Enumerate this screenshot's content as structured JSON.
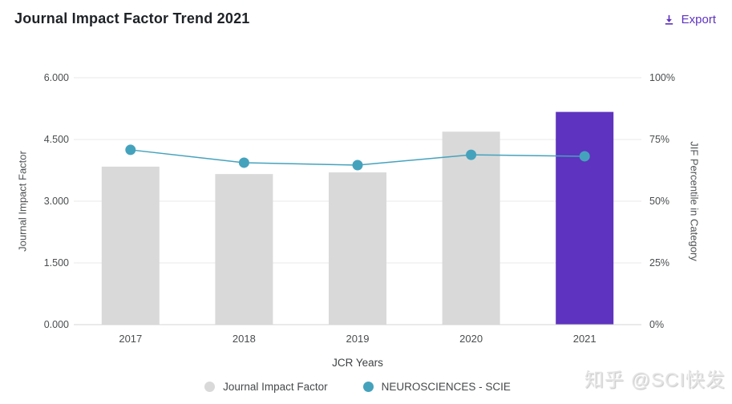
{
  "header": {
    "title": "Journal Impact Factor Trend 2021",
    "export_label": "Export"
  },
  "watermark": "知乎 @SCI快发",
  "colors": {
    "accent_purple": "#5e33bf",
    "bar_gray": "#d9d9d9",
    "line_teal": "#45a2bd",
    "grid": "#e9e9e9",
    "axis_line": "#d5d5d5"
  },
  "chart_data": {
    "type": "bar+line",
    "title": "Journal Impact Factor Trend 2021",
    "categories": [
      "2017",
      "2018",
      "2019",
      "2020",
      "2021"
    ],
    "series": [
      {
        "name": "Journal Impact Factor",
        "type": "bar",
        "axis": "left",
        "values": [
          3.84,
          3.66,
          3.7,
          4.69,
          5.17
        ],
        "bar_colors": [
          "#d9d9d9",
          "#d9d9d9",
          "#d9d9d9",
          "#d9d9d9",
          "#5e33bf"
        ]
      },
      {
        "name": "NEUROSCIENCES - SCIE",
        "type": "line",
        "axis": "right",
        "values": [
          70.8,
          65.6,
          64.6,
          68.8,
          68.2
        ],
        "color": "#45a2bd"
      }
    ],
    "x_axis": {
      "label": "JCR Years"
    },
    "left_axis": {
      "label": "Journal Impact Factor",
      "range": [
        0,
        6
      ],
      "ticks": [
        0,
        1.5,
        3,
        4.5,
        6
      ],
      "tick_labels": [
        "0.000",
        "1.500",
        "3.000",
        "4.500",
        "6.000"
      ]
    },
    "right_axis": {
      "label": "JIF Percentile in Category",
      "range": [
        0,
        100
      ],
      "ticks": [
        0,
        25,
        50,
        75,
        100
      ],
      "tick_labels": [
        "0%",
        "25%",
        "50%",
        "75%",
        "100%"
      ]
    },
    "grid": true,
    "legend_position": "bottom",
    "legend": [
      {
        "label": "Journal Impact Factor",
        "color": "#d9d9d9"
      },
      {
        "label": "NEUROSCIENCES - SCIE",
        "color": "#45a2bd"
      }
    ]
  }
}
